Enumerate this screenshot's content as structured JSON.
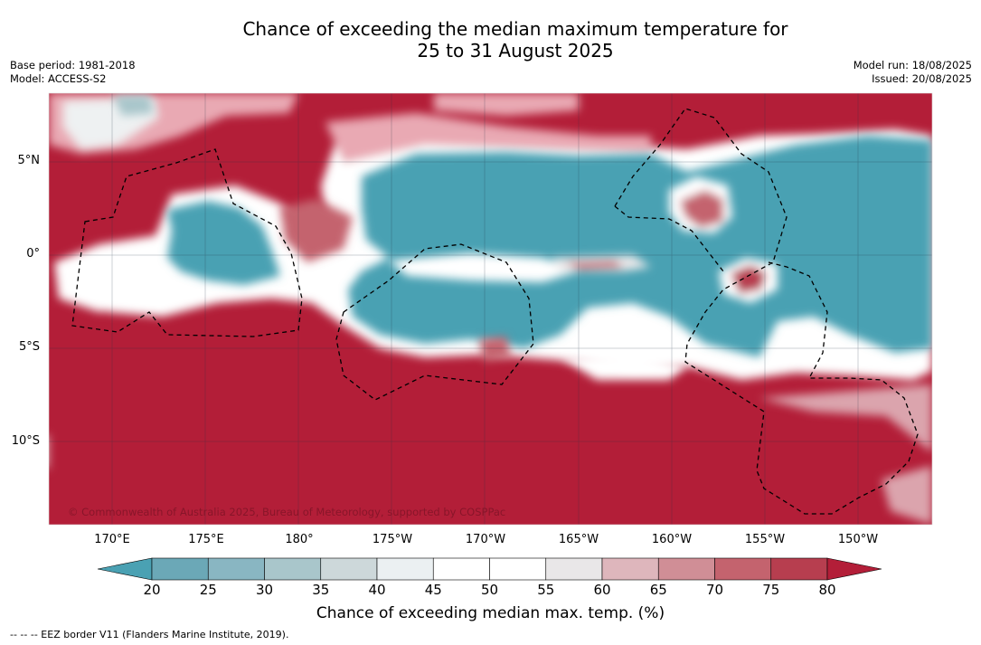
{
  "title": {
    "line1": "Chance of exceeding the median maximum temperature for",
    "line2": "25 to 31 August 2025"
  },
  "meta": {
    "base_period": "Base period: 1981-2018",
    "model": "Model: ACCESS-S2",
    "model_run": "Model run: 18/08/2025",
    "issued": "Issued: 20/08/2025"
  },
  "map": {
    "lat_labels": [
      "5°N",
      "0°",
      "5°S",
      "10°S"
    ],
    "lon_labels": [
      "170°E",
      "175°E",
      "180°",
      "175°W",
      "170°W",
      "165°W",
      "160°W",
      "155°W",
      "150°W"
    ],
    "copyright": "© Commonwealth of Australia 2025, Bureau of Meteorology, supported by COSPPac",
    "colors": {
      "high": "#b31e38",
      "low": "#4aa1b3",
      "neutral": "#ffffff"
    }
  },
  "colorbar": {
    "ticks": [
      "20",
      "25",
      "30",
      "35",
      "40",
      "45",
      "50",
      "55",
      "60",
      "65",
      "70",
      "75",
      "80"
    ],
    "bins": [
      "#6ba8b7",
      "#89b6c2",
      "#a9c6cb",
      "#cdd8da",
      "#ebf0f2",
      "#ffffff",
      "#ffffff",
      "#e9e7e8",
      "#deb6bc",
      "#d08e96",
      "#c4636e",
      "#b73e4f"
    ],
    "under_color": "#4aa1b3",
    "over_color": "#b31e38",
    "label": "Chance of exceeding median max. temp. (%)"
  },
  "footnote": "--  --  -- EEZ border V11 (Flanders Marine Institute, 2019)."
}
